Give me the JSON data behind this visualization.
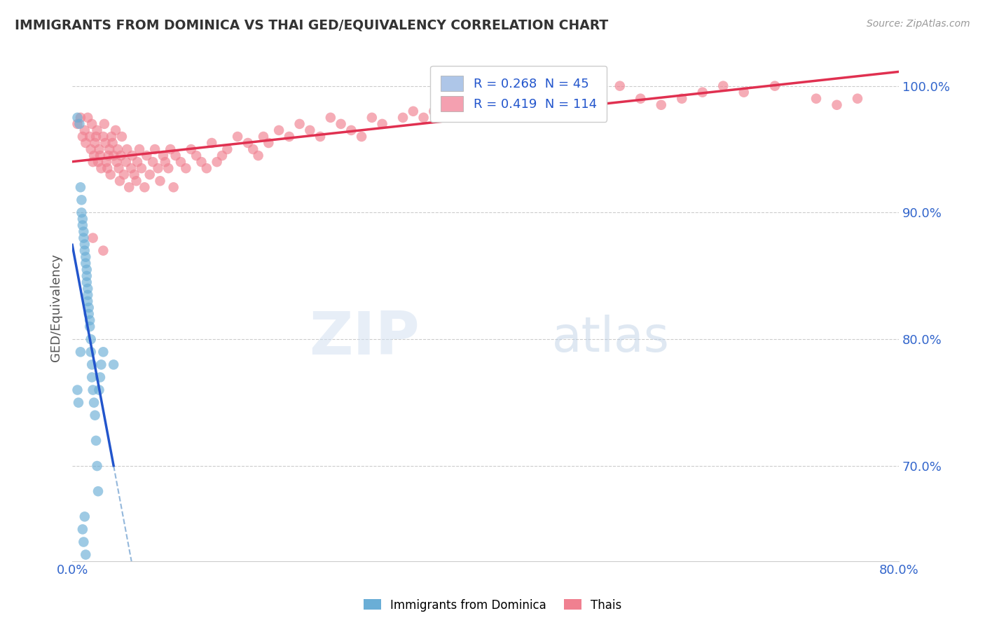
{
  "title": "IMMIGRANTS FROM DOMINICA VS THAI GED/EQUIVALENCY CORRELATION CHART",
  "source_text": "Source: ZipAtlas.com",
  "ylabel": "GED/Equivalency",
  "ytick_labels": [
    "70.0%",
    "80.0%",
    "90.0%",
    "100.0%"
  ],
  "ytick_values": [
    0.7,
    0.8,
    0.9,
    1.0
  ],
  "xlim": [
    0.0,
    0.8
  ],
  "ylim": [
    0.625,
    1.025
  ],
  "legend_entries": [
    {
      "label": "R = 0.268  N = 45",
      "color": "#aec6e8"
    },
    {
      "label": "R = 0.419  N = 114",
      "color": "#f4a0b0"
    }
  ],
  "dominica_color": "#6aaed6",
  "thai_color": "#f08090",
  "dominica_trendline_color": "#2255cc",
  "thai_trendline_color": "#e03050",
  "dominica_R": 0.268,
  "dominica_N": 45,
  "thai_R": 0.419,
  "thai_N": 114,
  "watermark_zip": "ZIP",
  "watermark_atlas": "atlas",
  "background_color": "#ffffff",
  "grid_color": "#cccccc",
  "dominica_x": [
    0.005,
    0.007,
    0.008,
    0.009,
    0.009,
    0.01,
    0.01,
    0.011,
    0.011,
    0.012,
    0.012,
    0.013,
    0.013,
    0.014,
    0.014,
    0.014,
    0.015,
    0.015,
    0.015,
    0.016,
    0.016,
    0.017,
    0.017,
    0.018,
    0.018,
    0.019,
    0.019,
    0.02,
    0.021,
    0.022,
    0.023,
    0.024,
    0.025,
    0.026,
    0.027,
    0.028,
    0.03,
    0.005,
    0.006,
    0.008,
    0.04,
    0.012,
    0.01,
    0.011,
    0.013
  ],
  "dominica_y": [
    0.975,
    0.97,
    0.92,
    0.91,
    0.9,
    0.895,
    0.89,
    0.885,
    0.88,
    0.875,
    0.87,
    0.865,
    0.86,
    0.855,
    0.85,
    0.845,
    0.84,
    0.835,
    0.83,
    0.825,
    0.82,
    0.815,
    0.81,
    0.8,
    0.79,
    0.78,
    0.77,
    0.76,
    0.75,
    0.74,
    0.72,
    0.7,
    0.68,
    0.76,
    0.77,
    0.78,
    0.79,
    0.76,
    0.75,
    0.79,
    0.78,
    0.66,
    0.65,
    0.64,
    0.63
  ],
  "thai_x": [
    0.005,
    0.008,
    0.01,
    0.012,
    0.013,
    0.015,
    0.017,
    0.018,
    0.019,
    0.02,
    0.021,
    0.022,
    0.023,
    0.024,
    0.025,
    0.026,
    0.027,
    0.028,
    0.03,
    0.031,
    0.032,
    0.033,
    0.034,
    0.035,
    0.036,
    0.037,
    0.038,
    0.039,
    0.04,
    0.042,
    0.043,
    0.044,
    0.045,
    0.046,
    0.047,
    0.048,
    0.05,
    0.052,
    0.053,
    0.055,
    0.057,
    0.058,
    0.06,
    0.062,
    0.063,
    0.065,
    0.067,
    0.07,
    0.072,
    0.075,
    0.078,
    0.08,
    0.083,
    0.085,
    0.088,
    0.09,
    0.093,
    0.095,
    0.098,
    0.1,
    0.105,
    0.11,
    0.115,
    0.12,
    0.125,
    0.13,
    0.135,
    0.14,
    0.145,
    0.15,
    0.16,
    0.17,
    0.175,
    0.18,
    0.185,
    0.19,
    0.2,
    0.21,
    0.22,
    0.23,
    0.24,
    0.25,
    0.26,
    0.27,
    0.28,
    0.29,
    0.3,
    0.32,
    0.33,
    0.34,
    0.35,
    0.38,
    0.39,
    0.4,
    0.42,
    0.43,
    0.44,
    0.46,
    0.47,
    0.49,
    0.51,
    0.53,
    0.55,
    0.57,
    0.59,
    0.61,
    0.63,
    0.65,
    0.68,
    0.72,
    0.74,
    0.76,
    0.02,
    0.03
  ],
  "thai_y": [
    0.97,
    0.975,
    0.96,
    0.965,
    0.955,
    0.975,
    0.96,
    0.95,
    0.97,
    0.94,
    0.945,
    0.955,
    0.96,
    0.965,
    0.94,
    0.95,
    0.945,
    0.935,
    0.96,
    0.97,
    0.955,
    0.94,
    0.935,
    0.945,
    0.95,
    0.93,
    0.96,
    0.955,
    0.945,
    0.965,
    0.94,
    0.95,
    0.935,
    0.925,
    0.945,
    0.96,
    0.93,
    0.94,
    0.95,
    0.92,
    0.935,
    0.945,
    0.93,
    0.925,
    0.94,
    0.95,
    0.935,
    0.92,
    0.945,
    0.93,
    0.94,
    0.95,
    0.935,
    0.925,
    0.945,
    0.94,
    0.935,
    0.95,
    0.92,
    0.945,
    0.94,
    0.935,
    0.95,
    0.945,
    0.94,
    0.935,
    0.955,
    0.94,
    0.945,
    0.95,
    0.96,
    0.955,
    0.95,
    0.945,
    0.96,
    0.955,
    0.965,
    0.96,
    0.97,
    0.965,
    0.96,
    0.975,
    0.97,
    0.965,
    0.96,
    0.975,
    0.97,
    0.975,
    0.98,
    0.975,
    0.98,
    0.985,
    0.98,
    0.99,
    0.985,
    0.99,
    0.985,
    0.99,
    0.995,
    0.99,
    0.995,
    1.0,
    0.99,
    0.985,
    0.99,
    0.995,
    1.0,
    0.995,
    1.0,
    0.99,
    0.985,
    0.99,
    0.88,
    0.87
  ]
}
